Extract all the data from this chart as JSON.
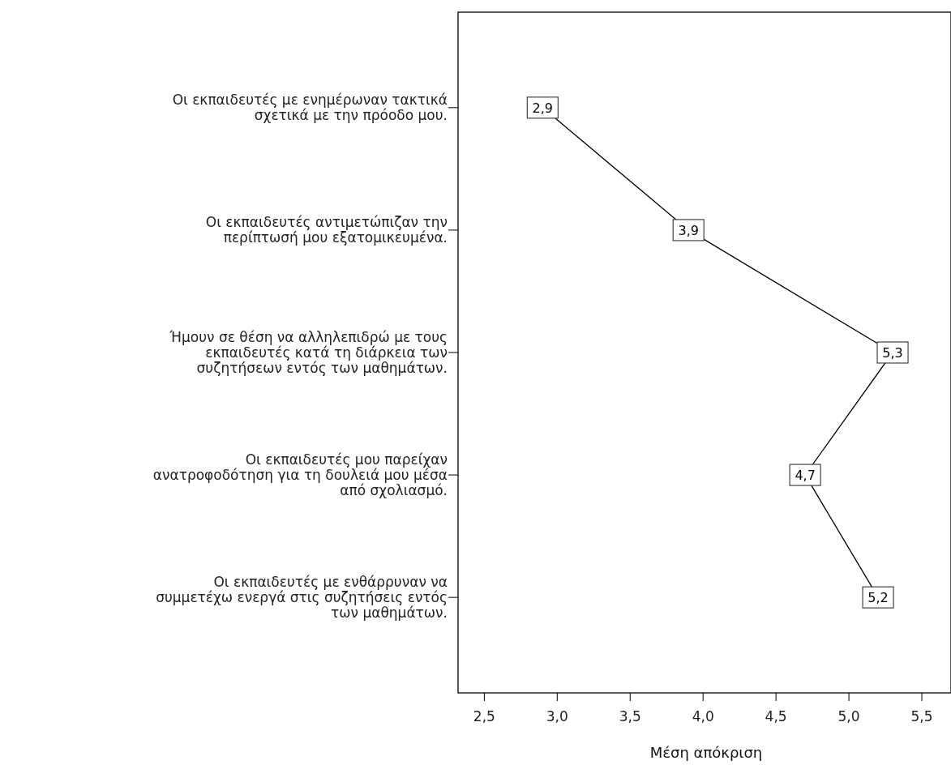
{
  "chart_data": {
    "type": "line",
    "orientation": "horizontal",
    "xlabel": "Μέση απόκριση",
    "categories": [
      "Οι εκπαιδευτές με ενημέρωναν τακτικά\nσχετικά με την πρόοδο μου.",
      "Οι εκπαιδευτές αντιμετώπιζαν την\nπερίπτωσή μου εξατομικευμένα.",
      "Ήμουν σε θέση να αλληλεπιδρώ με τους\nεκπαιδευτές κατά τη διάρκεια των\nσυζητήσεων εντός των μαθημάτων.",
      "Οι εκπαιδευτές μου παρείχαν\nανατροφοδότηση για τη δουλειά μου μέσα\nαπό σχολιασμό.",
      "Οι εκπαιδευτές με ενθάρρυναν να\nσυμμετέχω ενεργά στις συζητήσεις εντός\nτων μαθημάτων."
    ],
    "series": [
      {
        "color": "#000000",
        "values": [
          2.9,
          3.9,
          5.3,
          4.7,
          5.2
        ],
        "value_labels": [
          "2,9",
          "3,9",
          "5,3",
          "4,7",
          "5,2"
        ]
      }
    ],
    "xlim": [
      2.32,
      5.7
    ],
    "xticks": [
      {
        "value": 2.5,
        "label": "2,5"
      },
      {
        "value": 3.0,
        "label": "3,0"
      },
      {
        "value": 3.5,
        "label": "3,5"
      },
      {
        "value": 4.0,
        "label": "4,0"
      },
      {
        "value": 4.5,
        "label": "4,5"
      },
      {
        "value": 5.0,
        "label": "5,0"
      },
      {
        "value": 5.5,
        "label": "5,5"
      }
    ],
    "grid": false,
    "marker": "square",
    "line_style": "solid"
  }
}
